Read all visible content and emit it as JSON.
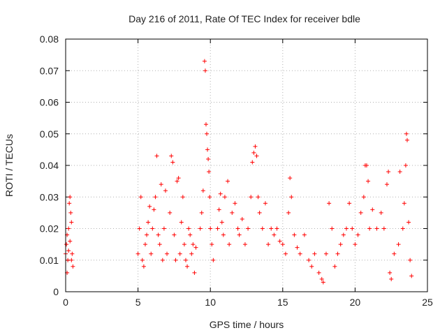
{
  "chart_data": {
    "type": "scatter",
    "title": "Day 216 of 2011, Rate Of TEC Index for receiver bdle",
    "xlabel": "GPS time / hours",
    "ylabel": "ROTI / TECUs",
    "xlim": [
      0,
      25
    ],
    "ylim": [
      0,
      0.08
    ],
    "xticks": [
      0,
      5,
      10,
      15,
      20,
      25
    ],
    "yticks": [
      0,
      0.01,
      0.02,
      0.03,
      0.04,
      0.05,
      0.06,
      0.07,
      0.08
    ],
    "xtick_labels": [
      "0",
      "5",
      "10",
      "15",
      "20",
      "25"
    ],
    "ytick_labels": [
      "0",
      "0.01",
      "0.02",
      "0.03",
      "0.04",
      "0.05",
      "0.06",
      "0.07",
      "0.08"
    ],
    "grid": true,
    "marker": "+",
    "color": "#ff0000",
    "points": [
      [
        0.0,
        0.012
      ],
      [
        0.05,
        0.015
      ],
      [
        0.1,
        0.018
      ],
      [
        0.15,
        0.01
      ],
      [
        0.2,
        0.02
      ],
      [
        0.25,
        0.028
      ],
      [
        0.3,
        0.03
      ],
      [
        0.35,
        0.025
      ],
      [
        0.4,
        0.022
      ],
      [
        0.45,
        0.012
      ],
      [
        0.5,
        0.008
      ],
      [
        0.1,
        0.006
      ],
      [
        0.2,
        0.013
      ],
      [
        0.3,
        0.016
      ],
      [
        0.4,
        0.01
      ],
      [
        5.0,
        0.012
      ],
      [
        5.1,
        0.02
      ],
      [
        5.2,
        0.03
      ],
      [
        5.3,
        0.01
      ],
      [
        5.4,
        0.008
      ],
      [
        5.5,
        0.015
      ],
      [
        5.6,
        0.018
      ],
      [
        5.7,
        0.022
      ],
      [
        5.8,
        0.027
      ],
      [
        5.9,
        0.012
      ],
      [
        6.0,
        0.02
      ],
      [
        6.1,
        0.026
      ],
      [
        6.2,
        0.03
      ],
      [
        6.3,
        0.043
      ],
      [
        6.4,
        0.018
      ],
      [
        6.5,
        0.015
      ],
      [
        6.6,
        0.034
      ],
      [
        6.7,
        0.01
      ],
      [
        6.8,
        0.02
      ],
      [
        6.9,
        0.032
      ],
      [
        7.0,
        0.012
      ],
      [
        7.2,
        0.025
      ],
      [
        7.3,
        0.043
      ],
      [
        7.4,
        0.041
      ],
      [
        7.5,
        0.018
      ],
      [
        7.6,
        0.01
      ],
      [
        7.7,
        0.035
      ],
      [
        7.8,
        0.036
      ],
      [
        7.9,
        0.012
      ],
      [
        8.0,
        0.022
      ],
      [
        8.1,
        0.03
      ],
      [
        8.2,
        0.015
      ],
      [
        8.3,
        0.01
      ],
      [
        8.4,
        0.008
      ],
      [
        8.5,
        0.02
      ],
      [
        8.6,
        0.018
      ],
      [
        8.7,
        0.012
      ],
      [
        8.8,
        0.015
      ],
      [
        8.9,
        0.006
      ],
      [
        9.0,
        0.014
      ],
      [
        9.3,
        0.02
      ],
      [
        9.4,
        0.025
      ],
      [
        9.5,
        0.032
      ],
      [
        9.6,
        0.073
      ],
      [
        9.65,
        0.07
      ],
      [
        9.7,
        0.053
      ],
      [
        9.75,
        0.05
      ],
      [
        9.8,
        0.045
      ],
      [
        9.85,
        0.042
      ],
      [
        9.9,
        0.038
      ],
      [
        9.95,
        0.03
      ],
      [
        10.0,
        0.02
      ],
      [
        10.1,
        0.015
      ],
      [
        10.2,
        0.01
      ],
      [
        10.5,
        0.02
      ],
      [
        10.6,
        0.026
      ],
      [
        10.7,
        0.031
      ],
      [
        10.8,
        0.022
      ],
      [
        10.9,
        0.018
      ],
      [
        11.0,
        0.03
      ],
      [
        11.2,
        0.035
      ],
      [
        11.3,
        0.015
      ],
      [
        11.5,
        0.025
      ],
      [
        11.7,
        0.028
      ],
      [
        11.9,
        0.02
      ],
      [
        12.0,
        0.018
      ],
      [
        12.2,
        0.023
      ],
      [
        12.4,
        0.015
      ],
      [
        12.6,
        0.02
      ],
      [
        12.8,
        0.03
      ],
      [
        12.9,
        0.041
      ],
      [
        13.0,
        0.044
      ],
      [
        13.1,
        0.046
      ],
      [
        13.2,
        0.043
      ],
      [
        13.3,
        0.03
      ],
      [
        13.4,
        0.025
      ],
      [
        13.6,
        0.02
      ],
      [
        13.8,
        0.028
      ],
      [
        14.0,
        0.015
      ],
      [
        14.2,
        0.02
      ],
      [
        14.4,
        0.018
      ],
      [
        14.6,
        0.02
      ],
      [
        14.8,
        0.016
      ],
      [
        15.0,
        0.015
      ],
      [
        15.2,
        0.012
      ],
      [
        15.4,
        0.025
      ],
      [
        15.5,
        0.036
      ],
      [
        15.6,
        0.03
      ],
      [
        15.8,
        0.018
      ],
      [
        16.0,
        0.014
      ],
      [
        16.2,
        0.012
      ],
      [
        16.5,
        0.018
      ],
      [
        16.8,
        0.01
      ],
      [
        17.0,
        0.008
      ],
      [
        17.2,
        0.012
      ],
      [
        17.5,
        0.006
      ],
      [
        17.7,
        0.004
      ],
      [
        17.8,
        0.003
      ],
      [
        18.0,
        0.012
      ],
      [
        18.2,
        0.028
      ],
      [
        18.4,
        0.02
      ],
      [
        18.6,
        0.008
      ],
      [
        18.8,
        0.012
      ],
      [
        19.0,
        0.015
      ],
      [
        19.2,
        0.018
      ],
      [
        19.4,
        0.02
      ],
      [
        19.6,
        0.028
      ],
      [
        19.8,
        0.02
      ],
      [
        20.0,
        0.015
      ],
      [
        20.2,
        0.018
      ],
      [
        20.4,
        0.025
      ],
      [
        20.6,
        0.03
      ],
      [
        20.7,
        0.04
      ],
      [
        20.8,
        0.04
      ],
      [
        20.9,
        0.035
      ],
      [
        21.0,
        0.02
      ],
      [
        21.2,
        0.026
      ],
      [
        21.5,
        0.02
      ],
      [
        21.8,
        0.025
      ],
      [
        22.0,
        0.02
      ],
      [
        22.2,
        0.034
      ],
      [
        22.3,
        0.038
      ],
      [
        22.4,
        0.006
      ],
      [
        22.5,
        0.004
      ],
      [
        22.7,
        0.012
      ],
      [
        23.0,
        0.015
      ],
      [
        23.1,
        0.038
      ],
      [
        23.3,
        0.02
      ],
      [
        23.4,
        0.028
      ],
      [
        23.5,
        0.04
      ],
      [
        23.6,
        0.048
      ],
      [
        23.55,
        0.05
      ],
      [
        23.7,
        0.022
      ],
      [
        23.8,
        0.01
      ],
      [
        23.9,
        0.005
      ]
    ]
  }
}
